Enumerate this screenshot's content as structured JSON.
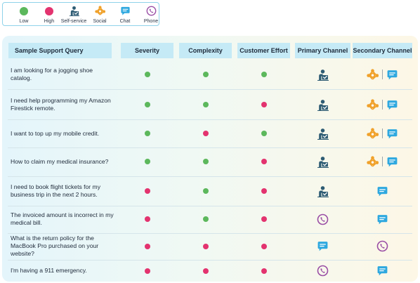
{
  "colors": {
    "low": "#5cb85c",
    "high": "#e3336f",
    "selfservice": "#2d5b73",
    "social": "#f0a12a",
    "chat": "#2ea8df",
    "phone": "#9a4ea5"
  },
  "legend": [
    {
      "key": "low",
      "icon": "low-dot",
      "label": "Low"
    },
    {
      "key": "high",
      "icon": "high-dot",
      "label": "High"
    },
    {
      "key": "selfservice",
      "icon": "self-service-icon",
      "label": "Self-service"
    },
    {
      "key": "social",
      "icon": "social-icon",
      "label": "Social"
    },
    {
      "key": "chat",
      "icon": "chat-icon",
      "label": "Chat"
    },
    {
      "key": "phone",
      "icon": "phone-icon",
      "label": "Phone"
    }
  ],
  "headers": {
    "query": "Sample Support Query",
    "severity": "Severity",
    "complexity": "Complexity",
    "effort": "Customer Effort",
    "primary": "Primary Channel",
    "secondary": "Secondary Channel"
  },
  "rows": [
    {
      "query": "I am looking for a jogging shoe catalog.",
      "severity": "low",
      "complexity": "low",
      "effort": "low",
      "primary": [
        "selfservice"
      ],
      "secondary": [
        "social",
        "chat"
      ]
    },
    {
      "query": "I need help programming my Amazon Firestick remote.",
      "severity": "low",
      "complexity": "low",
      "effort": "high",
      "primary": [
        "selfservice"
      ],
      "secondary": [
        "social",
        "chat"
      ]
    },
    {
      "query": "I want to top up my mobile credit.",
      "severity": "low",
      "complexity": "high",
      "effort": "low",
      "primary": [
        "selfservice"
      ],
      "secondary": [
        "social",
        "chat"
      ]
    },
    {
      "query": "How to claim my medical insurance?",
      "severity": "low",
      "complexity": "low",
      "effort": "high",
      "primary": [
        "selfservice"
      ],
      "secondary": [
        "social",
        "chat"
      ]
    },
    {
      "query": "I need to book flight tickets for my business trip in the next 2 hours.",
      "severity": "high",
      "complexity": "low",
      "effort": "high",
      "primary": [
        "selfservice"
      ],
      "secondary": [
        "chat"
      ]
    },
    {
      "query": "The invoiced amount is incorrect in my medical bill.",
      "severity": "high",
      "complexity": "low",
      "effort": "high",
      "primary": [
        "phone"
      ],
      "secondary": [
        "chat"
      ]
    },
    {
      "query": "What is the return policy for the MacBook Pro purchased on your website?",
      "severity": "high",
      "complexity": "high",
      "effort": "high",
      "primary": [
        "chat"
      ],
      "secondary": [
        "phone"
      ]
    },
    {
      "query": "I'm having a 911 emergency.",
      "severity": "high",
      "complexity": "high",
      "effort": "high",
      "primary": [
        "phone"
      ],
      "secondary": [
        "chat"
      ]
    }
  ]
}
